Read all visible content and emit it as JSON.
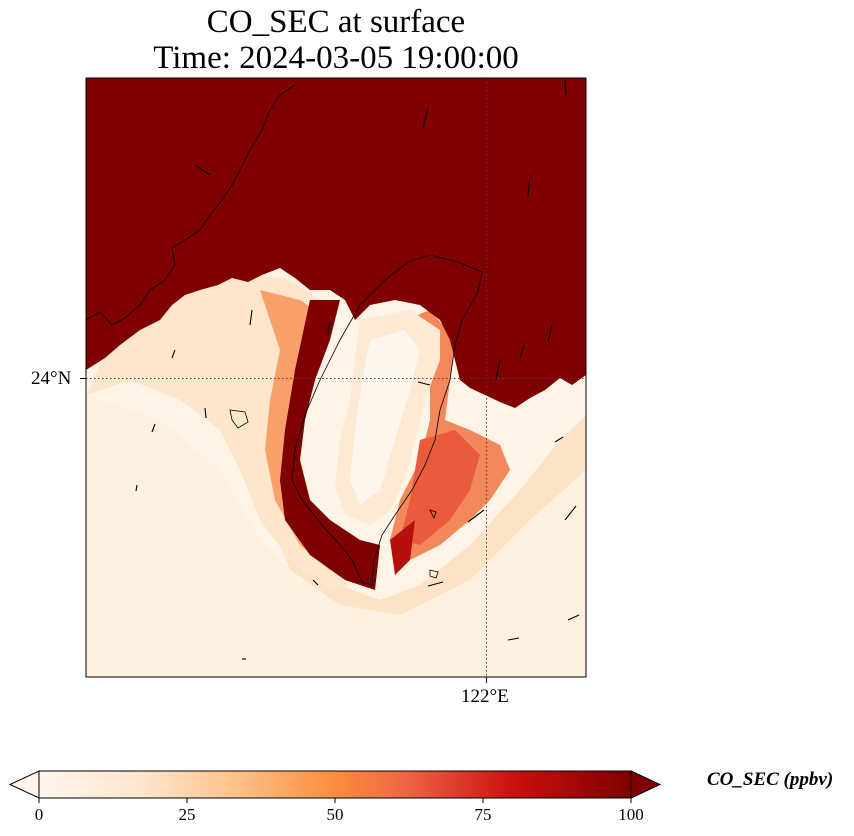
{
  "title_line1": "CO_SEC at surface",
  "title_line2": "Time: 2024-03-05 19:00:00",
  "lat_label": "24°N",
  "lon_label": "122°E",
  "colorbar": {
    "label": "CO_SEC (ppbv)",
    "ticks": [
      "0",
      "25",
      "50",
      "75",
      "100"
    ],
    "colors": [
      "#fff5eb",
      "#fdd9b4",
      "#fdae6b",
      "#f3703f",
      "#d7301f",
      "#a50f15",
      "#7f0000"
    ]
  },
  "chart_data": {
    "type": "heatmap",
    "variable": "CO_SEC",
    "units": "ppbv",
    "level": "surface",
    "time": "2024-03-05 19:00:00",
    "color_range": [
      0,
      100
    ],
    "extend": "both",
    "gridlines": {
      "latitude": [
        24
      ],
      "longitude": [
        122
      ]
    },
    "features": [
      {
        "region": "north of front (mainland coast / northern strait)",
        "level": "100"
      },
      {
        "region": "west coast of Taiwan",
        "level": "100"
      },
      {
        "region": "southern tip of Taiwan",
        "level": "100"
      },
      {
        "region": "interior of Taiwan",
        "level": "0-10"
      },
      {
        "region": "east coast of Taiwan",
        "level": "40-80"
      },
      {
        "region": "southwest open sea",
        "level": "0-5"
      }
    ]
  }
}
